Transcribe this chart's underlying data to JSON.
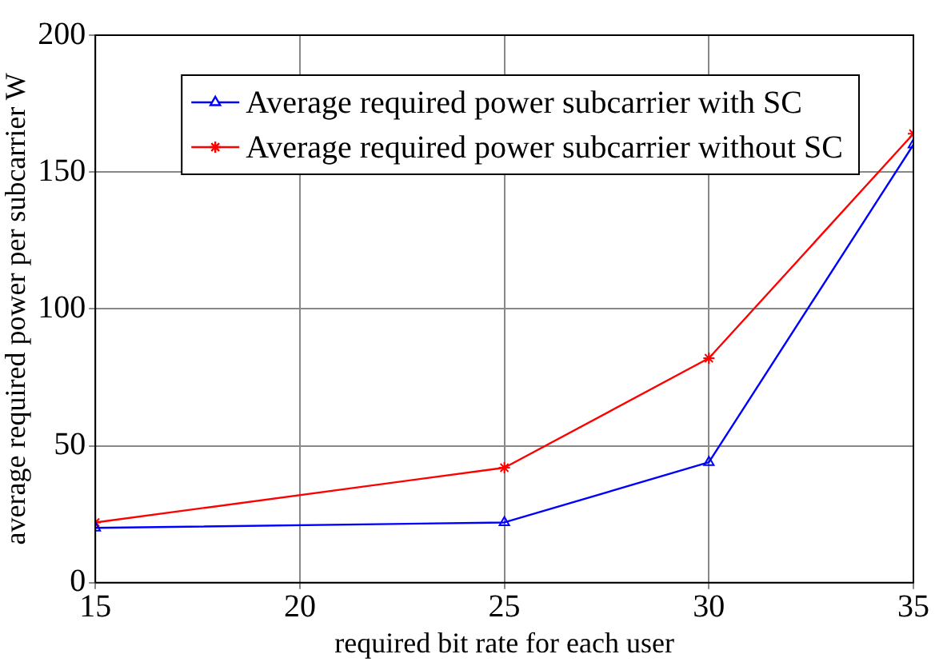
{
  "chart_data": {
    "type": "line",
    "xlabel": "required bit rate for each user",
    "ylabel": "average required power per subcarrier W",
    "x": [
      15,
      25,
      30,
      35
    ],
    "series": [
      {
        "name": "Average required power subcarrier with SC",
        "color": "#0000ff",
        "marker": "triangle",
        "values": [
          20,
          22,
          44,
          160
        ]
      },
      {
        "name": "Average required power subcarrier without SC",
        "color": "#ff0000",
        "marker": "cross",
        "values": [
          22,
          42,
          82,
          164
        ]
      }
    ],
    "xlim": [
      15,
      35
    ],
    "xticks": [
      15,
      20,
      25,
      30,
      35
    ],
    "ylim": [
      0,
      200
    ],
    "yticks": [
      0,
      50,
      100,
      150,
      200
    ],
    "grid": true,
    "legend": "top",
    "line_style": "solid"
  }
}
